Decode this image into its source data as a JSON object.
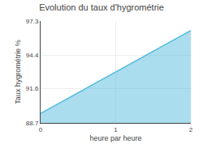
{
  "chart_data": {
    "type": "area",
    "title": "Evolution du taux d'hygrométrie",
    "xlabel": "heure par heure",
    "ylabel": "Taux hygrométrie %",
    "x": [
      0,
      2
    ],
    "values": [
      89.5,
      96.5
    ],
    "color": "#55bbdd",
    "xlim": [
      0,
      2
    ],
    "ylim": [
      88.7,
      97.3
    ],
    "xticks": [
      0,
      1,
      2
    ],
    "yticks": [
      88.7,
      91.6,
      94.4,
      97.3
    ],
    "grid": true
  }
}
